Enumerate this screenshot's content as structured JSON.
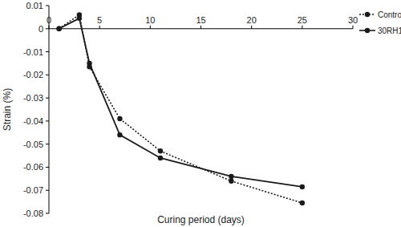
{
  "chart_data": {
    "type": "line",
    "x_label": "Curing period (days)",
    "y_label": "Strain (%)",
    "x": [
      1,
      3,
      4,
      7,
      11,
      18,
      25
    ],
    "series": [
      {
        "name": "Control",
        "color": "#1a1a1a",
        "marker": "circle",
        "line_style": "dotted",
        "values": [
          0,
          0.006,
          -0.0165,
          -0.039,
          -0.053,
          -0.066,
          -0.0755
        ]
      },
      {
        "name": "30RH1",
        "color": "#1a1a1a",
        "marker": "circle",
        "line_style": "solid",
        "values": [
          0,
          0.0045,
          -0.015,
          -0.046,
          -0.056,
          -0.064,
          -0.0685
        ]
      }
    ],
    "xlim": [
      0,
      30
    ],
    "xticks": [
      0,
      5,
      10,
      15,
      20,
      25,
      30
    ],
    "ylim": [
      -0.08,
      0.01
    ],
    "yticks": [
      0.01,
      0,
      -0.01,
      -0.02,
      -0.03,
      -0.04,
      -0.05,
      -0.06,
      -0.07,
      -0.08
    ],
    "grid": false,
    "legend": "top-right"
  }
}
